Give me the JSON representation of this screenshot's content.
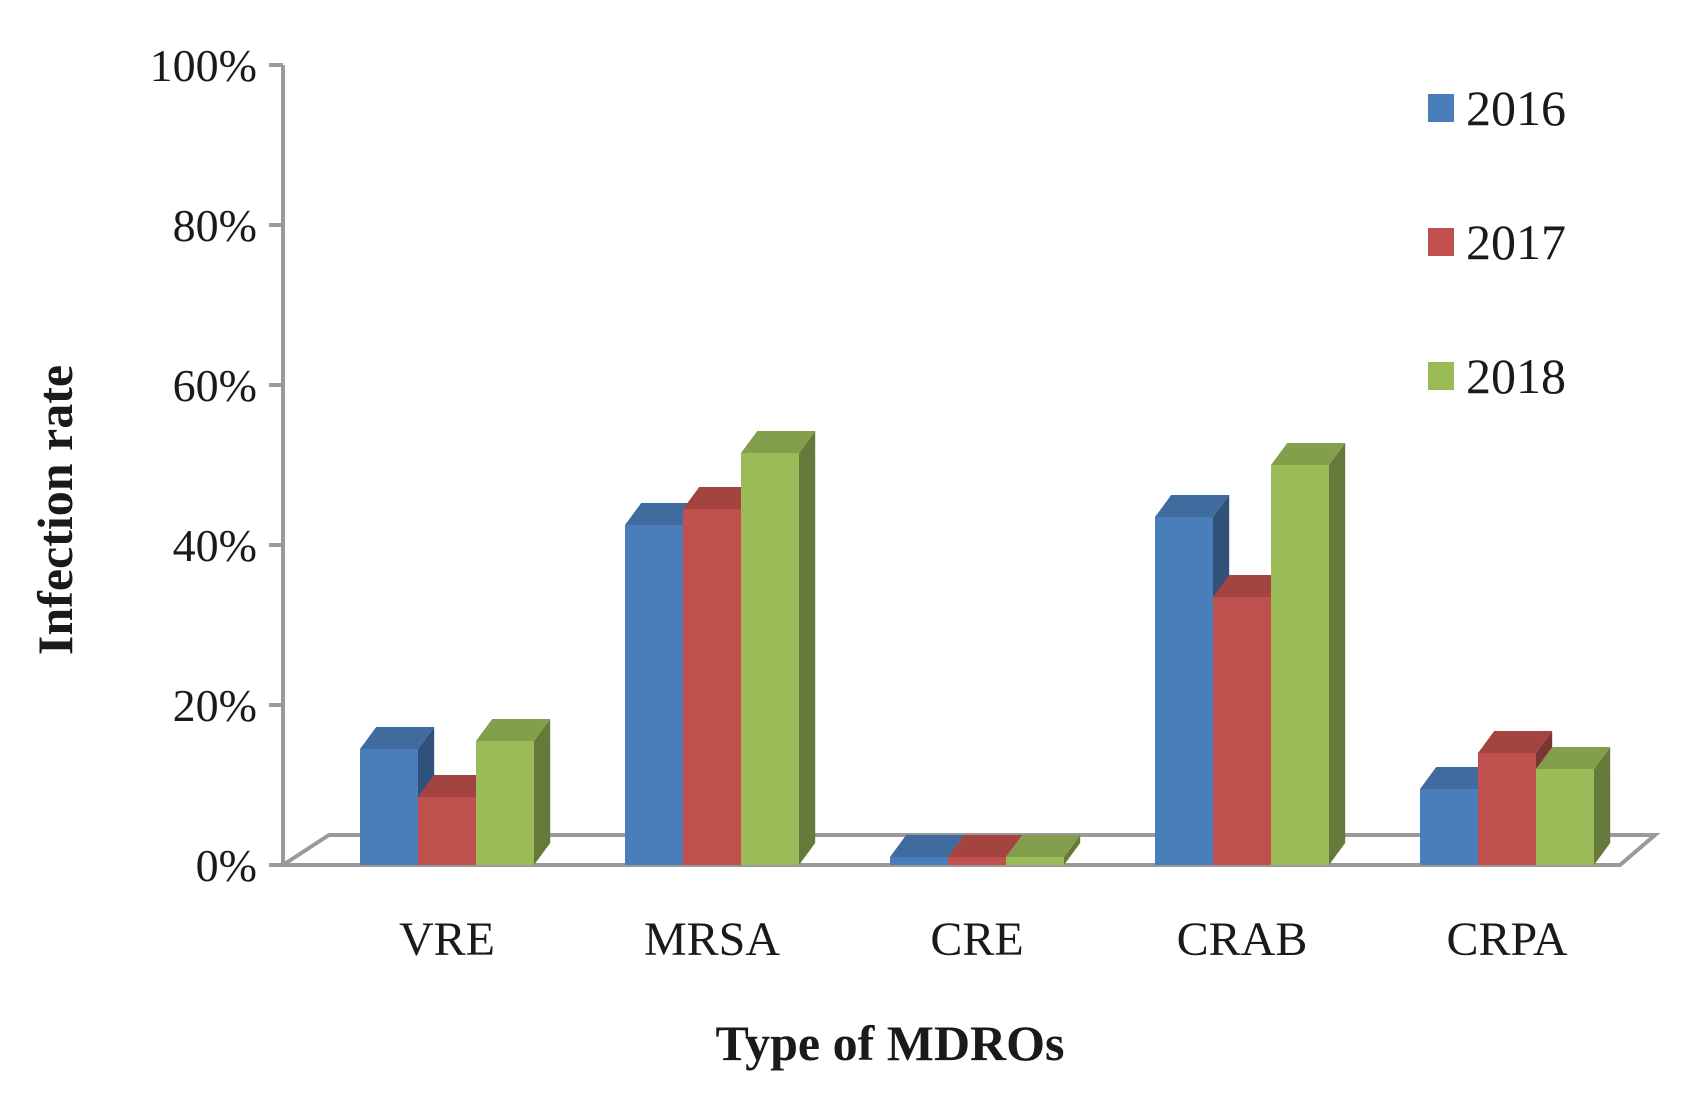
{
  "chart_data": {
    "type": "bar",
    "style": "3d-clustered-column",
    "categories": [
      "VRE",
      "MRSA",
      "CRE",
      "CRAB",
      "CRPA"
    ],
    "series": [
      {
        "name": "2016",
        "color": "#4a7ebb",
        "values": [
          14.5,
          42.5,
          1.0,
          43.5,
          9.5
        ]
      },
      {
        "name": "2017",
        "color": "#c0504d",
        "values": [
          8.5,
          44.5,
          1.0,
          33.5,
          14.0
        ]
      },
      {
        "name": "2018",
        "color": "#9bbb59",
        "values": [
          15.5,
          51.5,
          1.0,
          50.0,
          12.0
        ]
      }
    ],
    "xlabel": "Type of MDROs",
    "ylabel": "Infection rate",
    "ylim": [
      0,
      100
    ],
    "yticks": [
      "0%",
      "20%",
      "40%",
      "60%",
      "80%",
      "100%"
    ],
    "grid": false,
    "legend_position": "top-right"
  }
}
